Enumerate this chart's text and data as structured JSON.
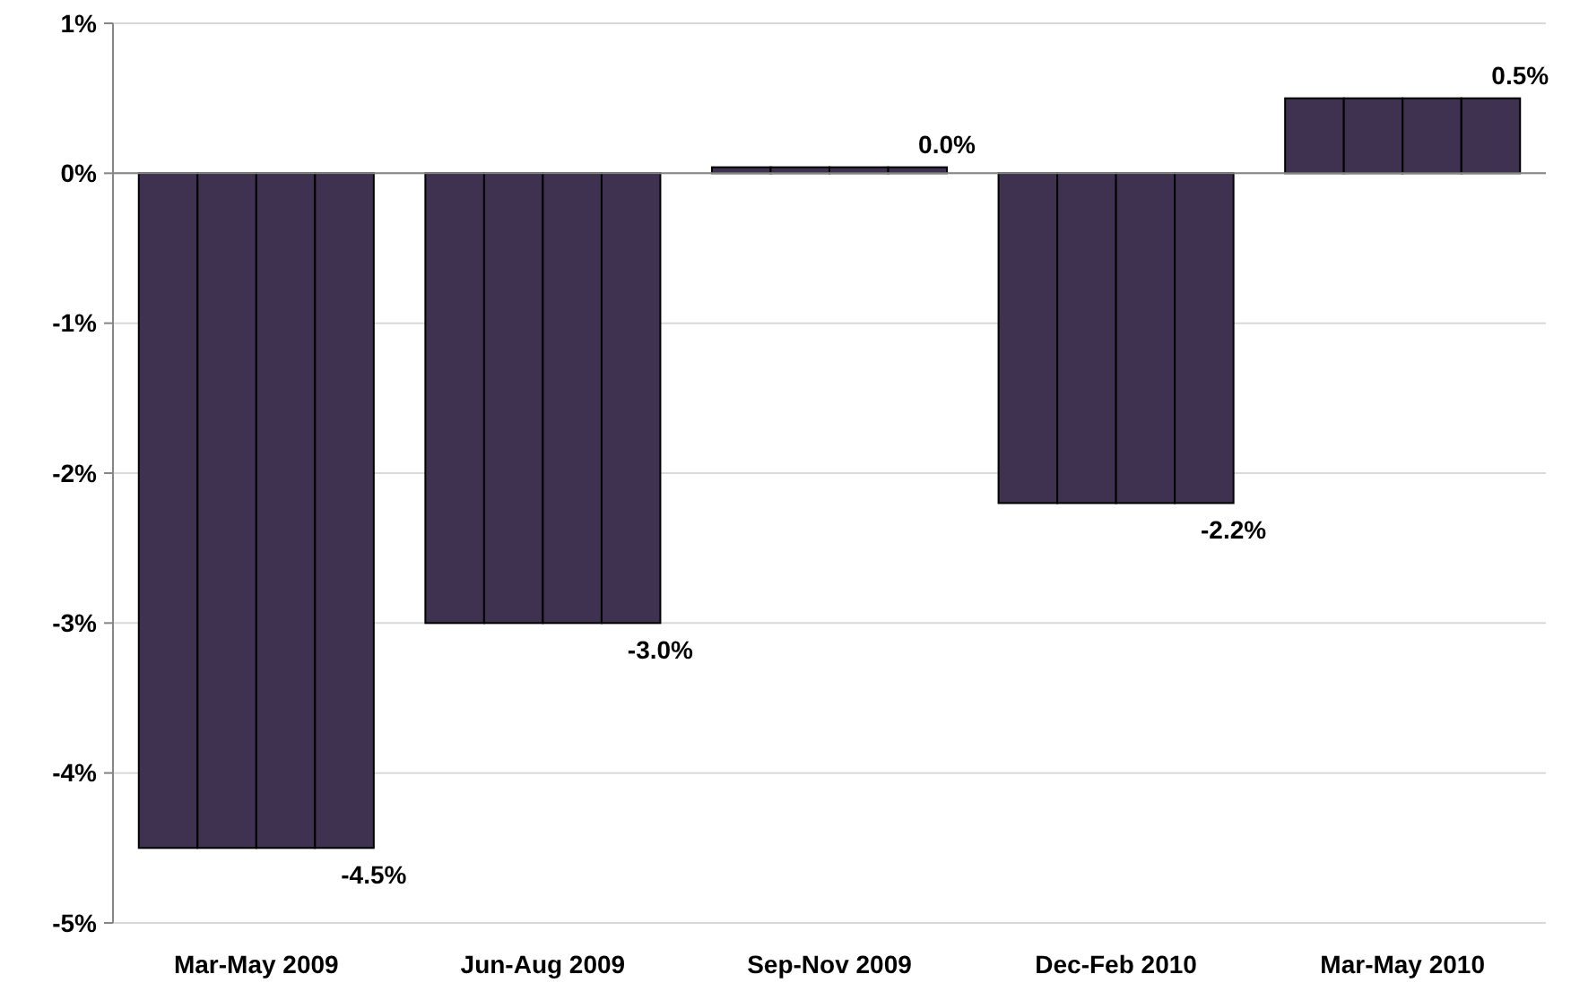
{
  "chart_data": {
    "type": "bar",
    "categories": [
      "Mar-May 2009",
      "Jun-Aug 2009",
      "Sep-Nov 2009",
      "Dec-Feb 2010",
      "Mar-May 2010"
    ],
    "series": [
      {
        "color": "#3f3150",
        "values": [
          -4.5,
          -3.0,
          0.04,
          -2.2,
          0.5
        ]
      },
      {
        "color": "#3f3150",
        "values": [
          -4.5,
          -3.0,
          0.04,
          -2.2,
          0.5
        ]
      },
      {
        "color": "#3f3150",
        "values": [
          -4.5,
          -3.0,
          0.04,
          -2.2,
          0.5
        ]
      },
      {
        "color": "#3f3150",
        "values": [
          -4.5,
          -3.0,
          0.04,
          -2.2,
          0.5
        ],
        "value_labels": [
          "-4.5%",
          "-3.0%",
          "0.0%",
          "-2.2%",
          "0.5%"
        ]
      }
    ],
    "ylim": [
      -5,
      1
    ],
    "yticks": [
      {
        "value": 1,
        "label": "1%"
      },
      {
        "value": 0,
        "label": "0%"
      },
      {
        "value": -1,
        "label": "-1%"
      },
      {
        "value": -2,
        "label": "-2%"
      },
      {
        "value": -3,
        "label": "-3%"
      },
      {
        "value": -4,
        "label": "-4%"
      },
      {
        "value": -5,
        "label": "-5%"
      }
    ],
    "grid": "y"
  }
}
